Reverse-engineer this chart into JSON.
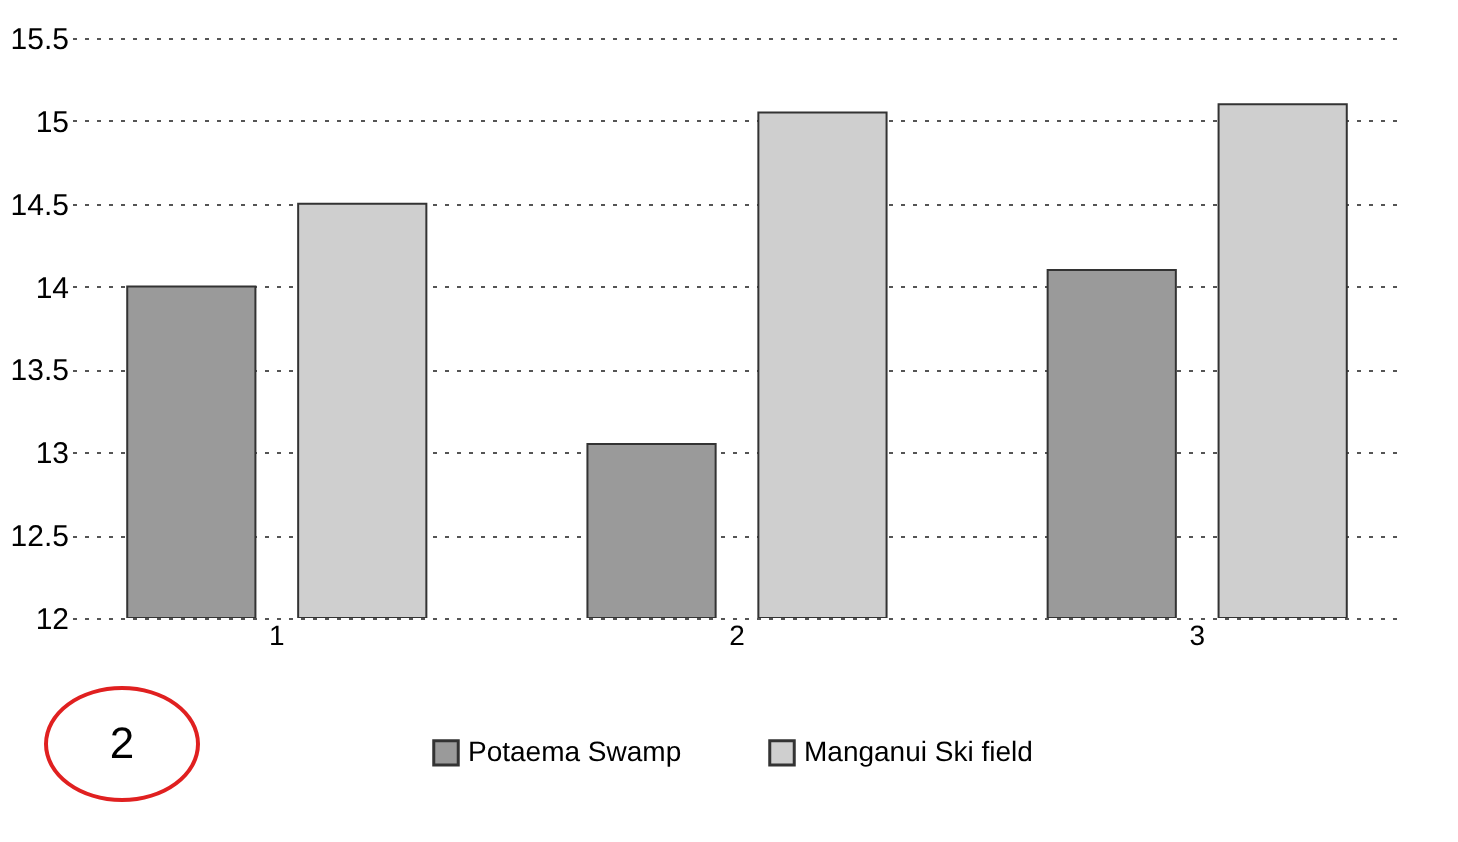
{
  "chart_data": {
    "type": "bar",
    "categories": [
      "1",
      "2",
      "3"
    ],
    "series": [
      {
        "name": "Potaema Swamp",
        "color": "#9a9a9a",
        "values": [
          14.0,
          13.05,
          14.1
        ]
      },
      {
        "name": "Manganui Ski field",
        "color": "#cfcfcf",
        "values": [
          14.5,
          15.05,
          15.1
        ]
      }
    ],
    "ylim": [
      12,
      15.5
    ],
    "yticks": [
      12,
      12.5,
      13,
      13.5,
      14,
      14.5,
      15,
      15.5
    ],
    "grid": "y",
    "legend": "bottom",
    "annotations": [
      "2"
    ]
  }
}
